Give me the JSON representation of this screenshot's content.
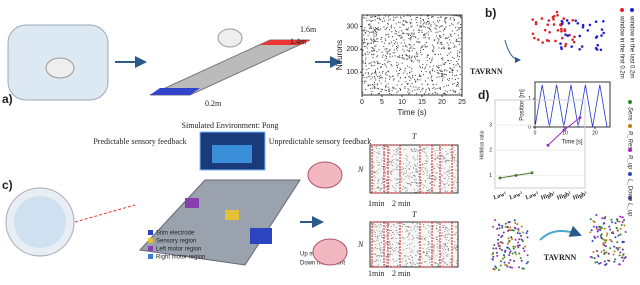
{
  "panel_a": {
    "label": "a)",
    "dims": [
      "1.6m",
      "1.4m",
      "0.2m"
    ],
    "raster": {
      "ylabel": "Neurons",
      "xlabel": "Time (s)",
      "yticks": [
        100,
        200,
        300
      ],
      "xticks": [
        0,
        5,
        10,
        15,
        20,
        25
      ],
      "ylim": [
        0,
        350
      ],
      "xlim": [
        0,
        25
      ]
    }
  },
  "panel_b": {
    "label": "b)",
    "method": "TAVRNN",
    "legend": [
      "window in the first 0.2m",
      "window in the last 0.2m"
    ],
    "position": {
      "ylabel": "Position [m]",
      "xlabel": "Time [s]",
      "yticks": [
        0,
        1
      ],
      "xticks": [
        0,
        10,
        20
      ],
      "ylim": [
        0,
        1.6
      ],
      "xlim": [
        0,
        25
      ]
    }
  },
  "panel_c": {
    "label": "c)",
    "title": "Simulated Environment: Pong",
    "predictable": "Predictable sensory feedback",
    "unpredictable": "Unpredictable sensory feedback",
    "T": "T",
    "N": "N",
    "one_min": "1min",
    "two_min": "2 min",
    "legend": [
      "Stim electrode",
      "Sensory region",
      "Left motor region",
      "Right motor region"
    ],
    "movement": [
      "Up movement",
      "Down movement"
    ]
  },
  "panel_d": {
    "label": "d)",
    "ylabel": "Hit/Miss ratio",
    "categories": [
      "Low¹",
      "Low²",
      "Low³",
      "High¹",
      "High²",
      "High³"
    ],
    "values": [
      0.9,
      1.0,
      1.1,
      2.2,
      2.8,
      3.3
    ],
    "yticks": [
      1,
      2,
      3
    ],
    "ylim": [
      0.5,
      4
    ],
    "legend": [
      "Sens",
      "R_Rest",
      "R_up",
      "L_Down",
      "L_up"
    ],
    "method": "TAVRNN"
  }
}
